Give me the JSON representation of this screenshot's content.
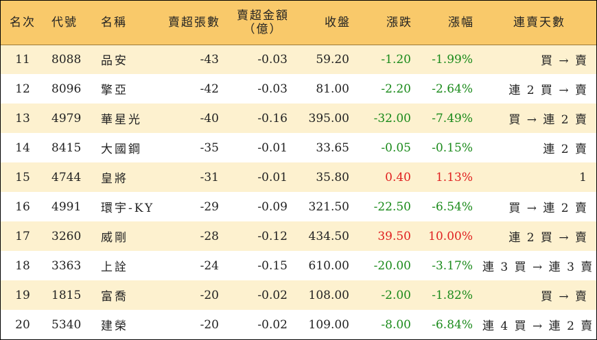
{
  "colors": {
    "header_bg": "#f9c96a",
    "stripe_bg": "#fdf1cf",
    "up": "#e02020",
    "down": "#1a8a1a"
  },
  "headers": {
    "rank": "名次",
    "code": "代號",
    "name": "名稱",
    "net_lots": "賣超張數",
    "net_amount_line1": "賣超金額",
    "net_amount_line2": "（億）",
    "close": "收盤",
    "change": "漲跌",
    "change_pct": "漲幅",
    "streak": "連賣天數"
  },
  "rows": [
    {
      "rank": "11",
      "code": "8088",
      "name": "品安",
      "net_lots": "-43",
      "net_amount": "-0.03",
      "close": "59.20",
      "change": "-1.20",
      "change_pct": "-1.99%",
      "trend": "down",
      "streak": "買 → 賣"
    },
    {
      "rank": "12",
      "code": "8096",
      "name": "擎亞",
      "net_lots": "-42",
      "net_amount": "-0.03",
      "close": "81.00",
      "change": "-2.20",
      "change_pct": "-2.64%",
      "trend": "down",
      "streak": "連 2 買 → 賣"
    },
    {
      "rank": "13",
      "code": "4979",
      "name": "華星光",
      "net_lots": "-40",
      "net_amount": "-0.16",
      "close": "395.00",
      "change": "-32.00",
      "change_pct": "-7.49%",
      "trend": "down",
      "streak": "買 → 連 2 賣"
    },
    {
      "rank": "14",
      "code": "8415",
      "name": "大國鋼",
      "net_lots": "-35",
      "net_amount": "-0.01",
      "close": "33.65",
      "change": "-0.05",
      "change_pct": "-0.15%",
      "trend": "down",
      "streak": "連 2 賣"
    },
    {
      "rank": "15",
      "code": "4744",
      "name": "皇將",
      "net_lots": "-31",
      "net_amount": "-0.01",
      "close": "35.80",
      "change": "0.40",
      "change_pct": "1.13%",
      "trend": "up",
      "streak": "1"
    },
    {
      "rank": "16",
      "code": "4991",
      "name": "環宇-KY",
      "net_lots": "-29",
      "net_amount": "-0.09",
      "close": "321.50",
      "change": "-22.50",
      "change_pct": "-6.54%",
      "trend": "down",
      "streak": "買 → 連 2 賣"
    },
    {
      "rank": "17",
      "code": "3260",
      "name": "威剛",
      "net_lots": "-28",
      "net_amount": "-0.12",
      "close": "434.50",
      "change": "39.50",
      "change_pct": "10.00%",
      "trend": "up",
      "streak": "連 2 買 → 賣"
    },
    {
      "rank": "18",
      "code": "3363",
      "name": "上詮",
      "net_lots": "-24",
      "net_amount": "-0.15",
      "close": "610.00",
      "change": "-20.00",
      "change_pct": "-3.17%",
      "trend": "down",
      "streak": "連 3 買 → 連 3 賣"
    },
    {
      "rank": "19",
      "code": "1815",
      "name": "富喬",
      "net_lots": "-20",
      "net_amount": "-0.02",
      "close": "108.00",
      "change": "-2.00",
      "change_pct": "-1.82%",
      "trend": "down",
      "streak": "買 → 賣"
    },
    {
      "rank": "20",
      "code": "5340",
      "name": "建榮",
      "net_lots": "-20",
      "net_amount": "-0.02",
      "close": "109.00",
      "change": "-8.00",
      "change_pct": "-6.84%",
      "trend": "down",
      "streak": "連 4 買 → 連 2 賣"
    }
  ]
}
